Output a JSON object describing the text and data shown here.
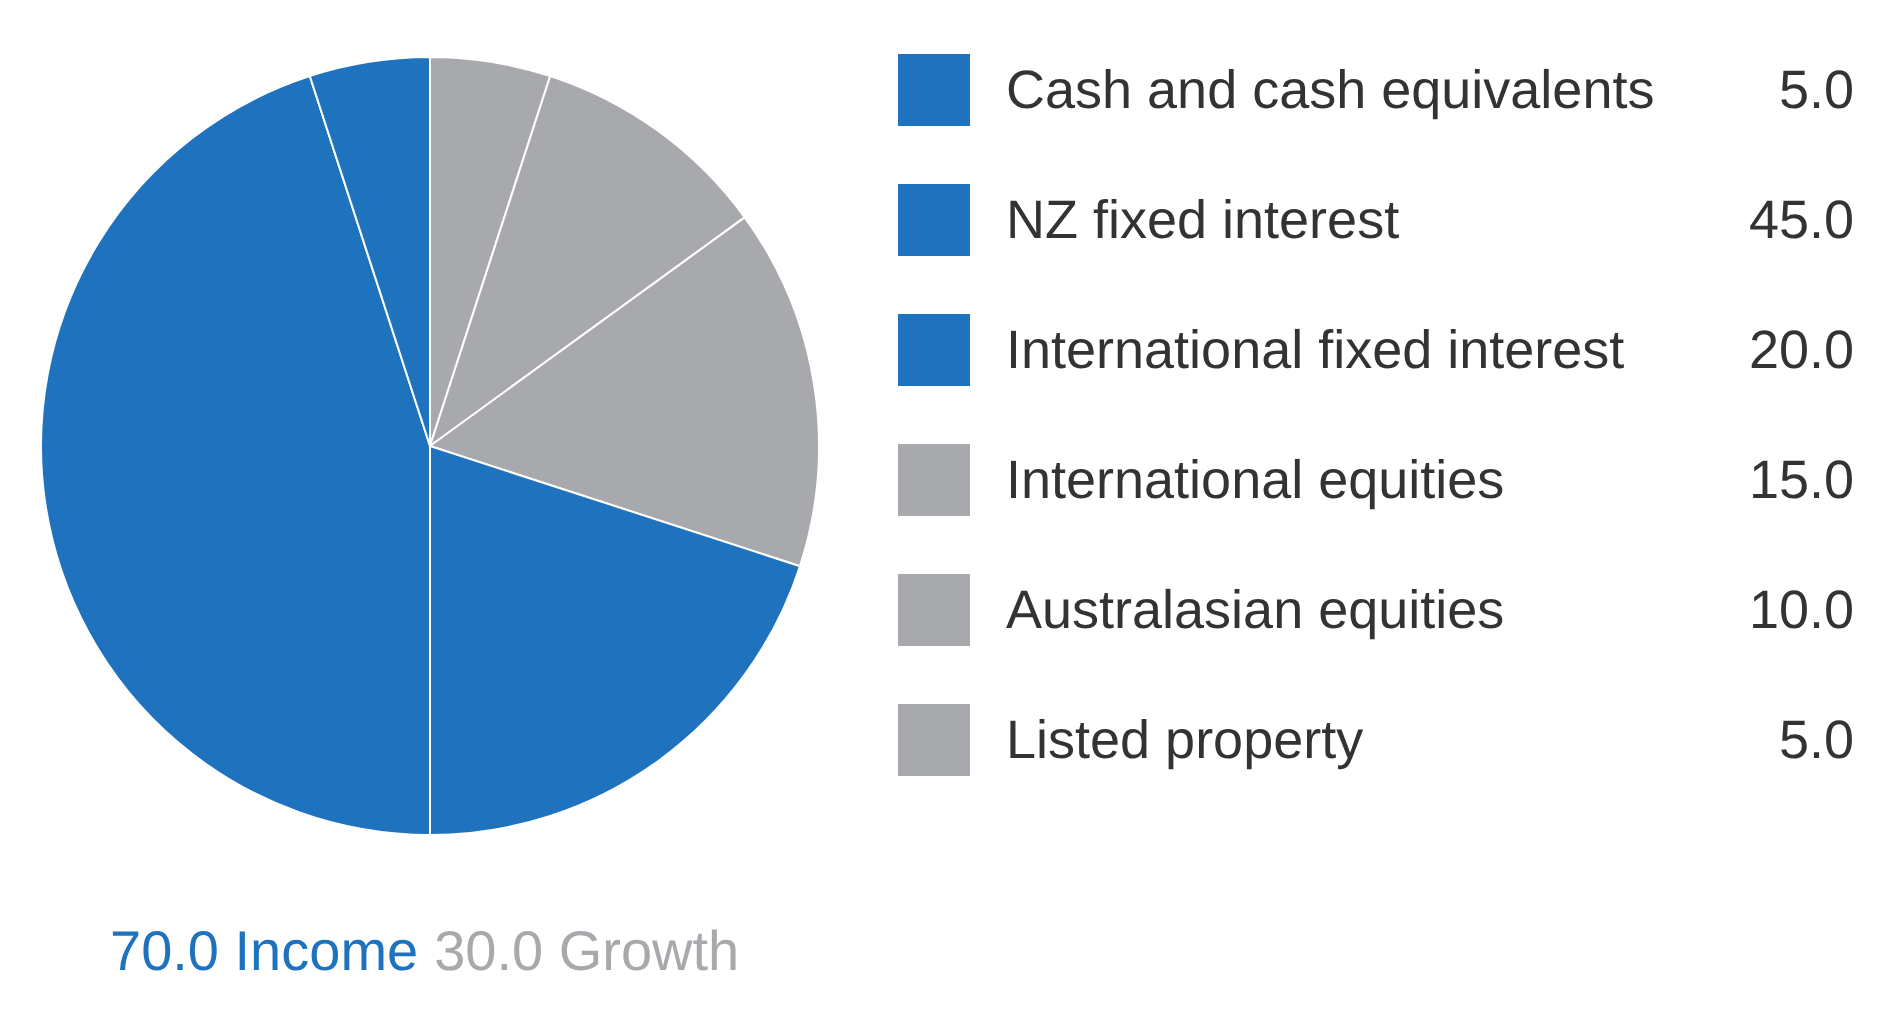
{
  "chart_data": {
    "type": "pie",
    "categories": [
      "Cash and cash equivalents",
      "NZ fixed interest",
      "International fixed interest",
      "International equities",
      "Australasian equities",
      "Listed property"
    ],
    "values": [
      5.0,
      45.0,
      20.0,
      15.0,
      10.0,
      5.0
    ],
    "colors": [
      "#1f73be",
      "#1f73be",
      "#1f73be",
      "#a7a9ac",
      "#a7a9ac",
      "#a7a9ac"
    ],
    "value_labels": [
      "5.0",
      "45.0",
      "20.0",
      "15.0",
      "10.0",
      "5.0"
    ],
    "legend": "right",
    "annotations": [
      "70.0 Income",
      "30.0 Growth"
    ]
  }
}
